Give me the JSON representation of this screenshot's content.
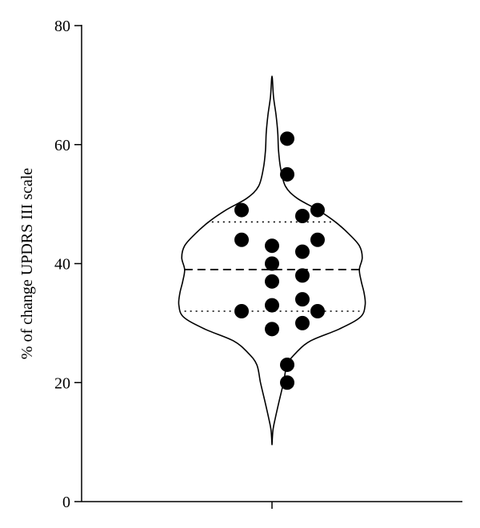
{
  "chart_data": {
    "type": "violin",
    "ylabel": "% of change UPDRS III scale",
    "ylim": [
      0,
      80
    ],
    "yticks": [
      0,
      20,
      40,
      60,
      80
    ],
    "grid": false,
    "median": 39,
    "quartiles": [
      32,
      47
    ],
    "points": [
      {
        "x": -2,
        "y": 49
      },
      {
        "x": 1,
        "y": 61
      },
      {
        "x": 3,
        "y": 49
      },
      {
        "x": 1,
        "y": 55
      },
      {
        "x": 2,
        "y": 48
      },
      {
        "x": -2,
        "y": 44
      },
      {
        "x": 3,
        "y": 44
      },
      {
        "x": 0,
        "y": 43
      },
      {
        "x": 2,
        "y": 42
      },
      {
        "x": 0,
        "y": 40
      },
      {
        "x": 2,
        "y": 38
      },
      {
        "x": 0,
        "y": 37
      },
      {
        "x": 2,
        "y": 34
      },
      {
        "x": 0,
        "y": 33
      },
      {
        "x": -2,
        "y": 32
      },
      {
        "x": 3,
        "y": 32
      },
      {
        "x": 2,
        "y": 30
      },
      {
        "x": 0,
        "y": 29
      },
      {
        "x": 1,
        "y": 23
      },
      {
        "x": 1,
        "y": 20
      }
    ],
    "density": [
      {
        "y": 9.5,
        "w": 0
      },
      {
        "y": 12,
        "w": 0.05
      },
      {
        "y": 14,
        "w": 0.17
      },
      {
        "y": 17,
        "w": 0.38
      },
      {
        "y": 20,
        "w": 0.6
      },
      {
        "y": 23,
        "w": 0.79
      },
      {
        "y": 25,
        "w": 1.25
      },
      {
        "y": 27,
        "w": 2.0
      },
      {
        "y": 29,
        "w": 3.5
      },
      {
        "y": 31,
        "w": 4.6
      },
      {
        "y": 33,
        "w": 4.85
      },
      {
        "y": 35,
        "w": 4.8
      },
      {
        "y": 37,
        "w": 4.65
      },
      {
        "y": 39,
        "w": 4.55
      },
      {
        "y": 41,
        "w": 4.7
      },
      {
        "y": 43,
        "w": 4.55
      },
      {
        "y": 45,
        "w": 4.0
      },
      {
        "y": 47,
        "w": 3.3
      },
      {
        "y": 49,
        "w": 2.4
      },
      {
        "y": 51,
        "w": 1.3
      },
      {
        "y": 53,
        "w": 0.7
      },
      {
        "y": 56,
        "w": 0.45
      },
      {
        "y": 59,
        "w": 0.34
      },
      {
        "y": 62,
        "w": 0.3
      },
      {
        "y": 65,
        "w": 0.21
      },
      {
        "y": 68,
        "w": 0.08
      },
      {
        "y": 71.5,
        "w": 0
      }
    ]
  }
}
